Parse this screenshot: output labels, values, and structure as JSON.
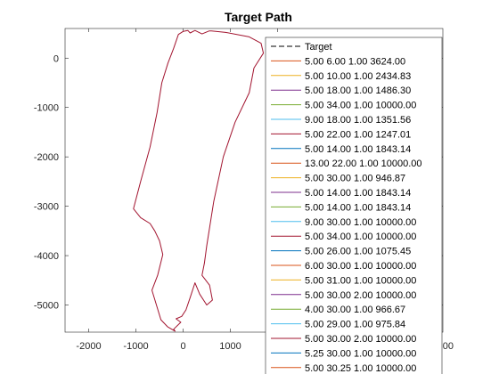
{
  "chart_data": {
    "type": "line",
    "title": "Target Path",
    "xlabel": "",
    "ylabel": "",
    "xlim": [
      -2500,
      5500
    ],
    "ylim": [
      -5550,
      600
    ],
    "xticks": [
      -2000,
      -1000,
      0,
      1000,
      2000
    ],
    "xtick_labels": [
      "-2000",
      "-1000",
      "0",
      "1000",
      "2000"
    ],
    "yticks": [
      0,
      -1000,
      -2000,
      -3000,
      -4000,
      -5000
    ],
    "ytick_labels": [
      "0",
      "-1000",
      "-2000",
      "-3000",
      "-4000",
      "-5000"
    ],
    "grid": false,
    "legend_position": "top-right",
    "path": {
      "color": "#A2142F",
      "x": [
        600,
        900,
        1400,
        1650,
        1700,
        1500,
        1400,
        1100,
        850,
        650,
        500,
        450,
        400,
        560,
        620,
        500,
        350,
        250,
        150,
        60,
        -30,
        -150,
        -50,
        -200,
        -170,
        -330,
        -470,
        -660,
        -540,
        -430,
        -500,
        -600,
        -700,
        -900,
        -1050,
        -900,
        -700,
        -550,
        -450,
        -320,
        -200,
        -100,
        0,
        100,
        150,
        250,
        400,
        550
      ],
      "y": [
        550,
        520,
        430,
        300,
        100,
        -200,
        -700,
        -1300,
        -2000,
        -2900,
        -3800,
        -4150,
        -4400,
        -4600,
        -4900,
        -5000,
        -4780,
        -4550,
        -4850,
        -5100,
        -5230,
        -5280,
        -5350,
        -5490,
        -5530,
        -5440,
        -5300,
        -4700,
        -4400,
        -3980,
        -3700,
        -3500,
        -3350,
        -3230,
        -3050,
        -2500,
        -1800,
        -1100,
        -500,
        -100,
        200,
        480,
        540,
        560,
        510,
        560,
        490,
        550
      ]
    },
    "legend": [
      {
        "label": "Target",
        "color": "#000000",
        "style": "dashed"
      },
      {
        "label": "5.00  6.00  1.00  3624.00",
        "color": "#D95319",
        "style": "solid"
      },
      {
        "label": "5.00  10.00 1.00  2434.83",
        "color": "#EDB120",
        "style": "solid"
      },
      {
        "label": "5.00  18.00 1.00  1486.30",
        "color": "#7E2F8E",
        "style": "solid"
      },
      {
        "label": "5.00  34.00 1.00  10000.00",
        "color": "#77AC30",
        "style": "solid"
      },
      {
        "label": "9.00  18.00 1.00  1351.56",
        "color": "#4DBEEE",
        "style": "solid"
      },
      {
        "label": "5.00  22.00 1.00  1247.01",
        "color": "#A2142F",
        "style": "solid"
      },
      {
        "label": "5.00  14.00 1.00  1843.14",
        "color": "#0072BD",
        "style": "solid"
      },
      {
        "label": "13.00 22.00 1.00  10000.00",
        "color": "#D95319",
        "style": "solid"
      },
      {
        "label": "5.00  30.00 1.00  946.87",
        "color": "#EDB120",
        "style": "solid"
      },
      {
        "label": "5.00  14.00 1.00  1843.14",
        "color": "#7E2F8E",
        "style": "solid"
      },
      {
        "label": "5.00  14.00 1.00  1843.14",
        "color": "#77AC30",
        "style": "solid"
      },
      {
        "label": "9.00  30.00 1.00  10000.00",
        "color": "#4DBEEE",
        "style": "solid"
      },
      {
        "label": "5.00  34.00 1.00  10000.00",
        "color": "#A2142F",
        "style": "solid"
      },
      {
        "label": "5.00  26.00 1.00  1075.45",
        "color": "#0072BD",
        "style": "solid"
      },
      {
        "label": "6.00  30.00 1.00  10000.00",
        "color": "#D95319",
        "style": "solid"
      },
      {
        "label": "5.00  31.00 1.00  10000.00",
        "color": "#EDB120",
        "style": "solid"
      },
      {
        "label": "5.00  30.00 2.00  10000.00",
        "color": "#7E2F8E",
        "style": "solid"
      },
      {
        "label": "4.00  30.00 1.00  966.67",
        "color": "#77AC30",
        "style": "solid"
      },
      {
        "label": "5.00  29.00 1.00  975.84",
        "color": "#4DBEEE",
        "style": "solid"
      },
      {
        "label": "5.00  30.00 2.00  10000.00",
        "color": "#A2142F",
        "style": "solid"
      },
      {
        "label": "5.25  30.00 1.00  10000.00",
        "color": "#0072BD",
        "style": "solid"
      },
      {
        "label": "5.00  30.25 1.00  10000.00",
        "color": "#D95319",
        "style": "solid"
      }
    ],
    "partial_tick_fragment": "00"
  }
}
